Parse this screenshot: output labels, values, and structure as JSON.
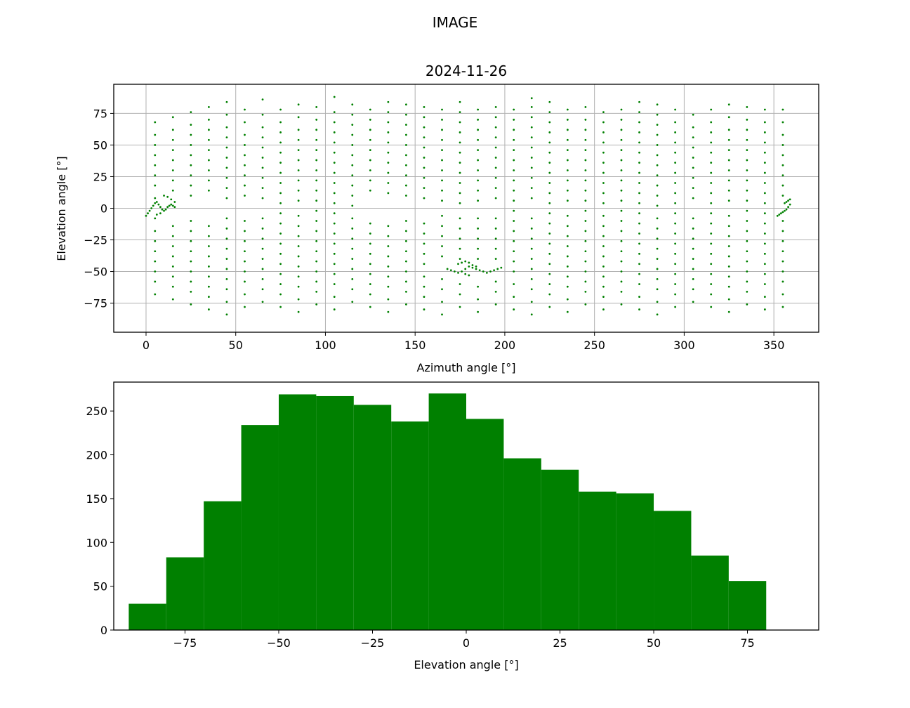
{
  "figure": {
    "suptitle": "IMAGE",
    "color": "#008000"
  },
  "chart_data": [
    {
      "type": "scatter",
      "title": "2024-11-26",
      "xlabel": "Azimuth angle [°]",
      "ylabel": "Elevation angle [°]",
      "xlim": [
        -18,
        375
      ],
      "ylim": [
        -98,
        98
      ],
      "xticks": [
        0,
        50,
        100,
        150,
        200,
        250,
        300,
        350
      ],
      "yticks": [
        -75,
        -50,
        -25,
        0,
        25,
        50,
        75
      ],
      "grid": true,
      "marker_color": "#008000",
      "elevation_columns": [
        {
          "x": 5,
          "el": [
            -68,
            -58,
            -50,
            -42,
            -34,
            -26,
            -18,
            -8,
            8,
            18,
            26,
            34,
            42,
            50,
            58,
            68
          ]
        },
        {
          "x": 15,
          "el": [
            -72,
            -62,
            -54,
            -46,
            -38,
            -30,
            -22,
            -14,
            14,
            22,
            30,
            38,
            46,
            54,
            62,
            72
          ]
        },
        {
          "x": 25,
          "el": [
            -76,
            -66,
            -58,
            -50,
            -42,
            -34,
            -26,
            -18,
            -10,
            10,
            18,
            26,
            34,
            42,
            50,
            58,
            66,
            76
          ]
        },
        {
          "x": 35,
          "el": [
            -80,
            -70,
            -62,
            -54,
            -46,
            -38,
            -30,
            -22,
            -14,
            14,
            22,
            30,
            38,
            46,
            54,
            62,
            70,
            80
          ]
        },
        {
          "x": 45,
          "el": [
            -84,
            -74,
            -64,
            -56,
            -48,
            -40,
            -32,
            -24,
            -16,
            -8,
            8,
            16,
            24,
            32,
            40,
            48,
            56,
            64,
            74,
            84
          ]
        },
        {
          "x": 55,
          "el": [
            -78,
            -68,
            -58,
            -50,
            -42,
            -34,
            -26,
            -18,
            -10,
            10,
            18,
            26,
            34,
            42,
            50,
            58,
            68,
            78
          ]
        },
        {
          "x": 65,
          "el": [
            -74,
            -64,
            -56,
            -48,
            -40,
            -32,
            -24,
            -16,
            -8,
            8,
            16,
            24,
            32,
            40,
            48,
            56,
            64,
            74,
            86
          ]
        },
        {
          "x": 75,
          "el": [
            -78,
            -68,
            -60,
            -52,
            -44,
            -36,
            -28,
            -20,
            -12,
            -4,
            4,
            12,
            20,
            28,
            36,
            44,
            52,
            60,
            68,
            78
          ]
        },
        {
          "x": 85,
          "el": [
            -82,
            -72,
            -62,
            -54,
            -46,
            -38,
            -30,
            -22,
            -14,
            -6,
            6,
            14,
            22,
            30,
            38,
            46,
            54,
            62,
            72,
            82
          ]
        },
        {
          "x": 95,
          "el": [
            -76,
            -66,
            -58,
            -50,
            -42,
            -34,
            -26,
            -18,
            -10,
            -2,
            6,
            14,
            22,
            30,
            38,
            46,
            54,
            62,
            70,
            80
          ]
        },
        {
          "x": 105,
          "el": [
            -80,
            -70,
            -60,
            -52,
            -44,
            -36,
            -28,
            -20,
            -12,
            -4,
            4,
            12,
            20,
            28,
            36,
            44,
            52,
            60,
            68,
            76,
            88
          ]
        },
        {
          "x": 115,
          "el": [
            -74,
            -64,
            -56,
            -48,
            -40,
            -32,
            -24,
            -16,
            -8,
            2,
            10,
            18,
            26,
            34,
            42,
            50,
            58,
            66,
            74,
            82
          ]
        },
        {
          "x": 125,
          "el": [
            -78,
            -68,
            -60,
            -52,
            -44,
            -36,
            -28,
            -20,
            -12,
            14,
            22,
            30,
            38,
            46,
            54,
            62,
            70,
            78
          ]
        },
        {
          "x": 135,
          "el": [
            -82,
            -72,
            -62,
            -54,
            -46,
            -38,
            -30,
            -22,
            -14,
            12,
            20,
            28,
            36,
            44,
            52,
            60,
            68,
            76,
            84
          ]
        },
        {
          "x": 145,
          "el": [
            -76,
            -66,
            -58,
            -50,
            -42,
            -34,
            -26,
            -18,
            -10,
            10,
            18,
            26,
            34,
            42,
            50,
            58,
            66,
            74,
            82
          ]
        },
        {
          "x": 155,
          "el": [
            -80,
            -70,
            -62,
            -54,
            -44,
            -36,
            -28,
            -20,
            -12,
            8,
            16,
            24,
            32,
            40,
            48,
            56,
            64,
            72,
            80
          ]
        },
        {
          "x": 165,
          "el": [
            -84,
            -74,
            -64,
            -56,
            -38,
            -30,
            -22,
            -14,
            -6,
            6,
            14,
            22,
            30,
            38,
            46,
            54,
            62,
            70,
            78
          ]
        },
        {
          "x": 175,
          "el": [
            -78,
            -68,
            -60,
            -40,
            -32,
            -24,
            -16,
            -8,
            4,
            12,
            20,
            28,
            36,
            44,
            52,
            60,
            68,
            76,
            84
          ]
        },
        {
          "x": 185,
          "el": [
            -82,
            -72,
            -62,
            -40,
            -32,
            -24,
            -16,
            -8,
            6,
            14,
            22,
            30,
            38,
            46,
            54,
            62,
            70,
            78
          ]
        },
        {
          "x": 195,
          "el": [
            -76,
            -66,
            -58,
            -40,
            -32,
            -24,
            -16,
            -8,
            8,
            16,
            24,
            32,
            40,
            48,
            56,
            64,
            72,
            80
          ]
        },
        {
          "x": 205,
          "el": [
            -80,
            -70,
            -60,
            -50,
            -42,
            -34,
            -26,
            -18,
            -10,
            -2,
            6,
            14,
            22,
            30,
            38,
            46,
            54,
            62,
            70,
            78
          ]
        },
        {
          "x": 215,
          "el": [
            -84,
            -74,
            -64,
            -56,
            -48,
            -40,
            -32,
            -24,
            -16,
            -8,
            8,
            16,
            24,
            32,
            40,
            48,
            56,
            64,
            72,
            80,
            87
          ]
        },
        {
          "x": 225,
          "el": [
            -78,
            -68,
            -60,
            -52,
            -44,
            -36,
            -28,
            -20,
            -12,
            -4,
            4,
            12,
            20,
            28,
            36,
            44,
            52,
            60,
            68,
            76,
            84
          ]
        },
        {
          "x": 235,
          "el": [
            -82,
            -72,
            -62,
            -54,
            -46,
            -38,
            -30,
            -22,
            -14,
            -6,
            6,
            14,
            22,
            30,
            38,
            46,
            54,
            62,
            70,
            78
          ]
        },
        {
          "x": 245,
          "el": [
            -76,
            -66,
            -58,
            -50,
            -42,
            -34,
            -26,
            -18,
            -10,
            -2,
            6,
            14,
            22,
            30,
            38,
            46,
            54,
            62,
            70,
            80
          ]
        },
        {
          "x": 255,
          "el": [
            -80,
            -70,
            -62,
            -54,
            -46,
            -38,
            -30,
            -22,
            -14,
            -6,
            4,
            12,
            20,
            28,
            36,
            44,
            52,
            60,
            68,
            76
          ]
        },
        {
          "x": 265,
          "el": [
            -76,
            -66,
            -58,
            -50,
            -42,
            -34,
            -26,
            -18,
            -10,
            -2,
            6,
            14,
            22,
            30,
            38,
            46,
            54,
            62,
            70,
            78
          ]
        },
        {
          "x": 275,
          "el": [
            -80,
            -70,
            -60,
            -52,
            -44,
            -36,
            -28,
            -20,
            -12,
            -4,
            4,
            12,
            20,
            28,
            36,
            44,
            52,
            60,
            68,
            76,
            84
          ]
        },
        {
          "x": 285,
          "el": [
            -84,
            -74,
            -64,
            -56,
            -48,
            -40,
            -32,
            -24,
            -16,
            -8,
            2,
            10,
            18,
            26,
            34,
            42,
            50,
            58,
            66,
            74,
            82
          ]
        },
        {
          "x": 295,
          "el": [
            -78,
            -68,
            -60,
            -52,
            -44,
            -36,
            -28,
            -20,
            -12,
            -4,
            4,
            12,
            20,
            28,
            36,
            44,
            52,
            60,
            68,
            78
          ]
        },
        {
          "x": 305,
          "el": [
            -74,
            -64,
            -56,
            -48,
            -40,
            -32,
            -24,
            -16,
            -8,
            8,
            16,
            24,
            32,
            40,
            48,
            56,
            64,
            74
          ]
        },
        {
          "x": 315,
          "el": [
            -78,
            -68,
            -60,
            -52,
            -44,
            -36,
            -28,
            -20,
            -12,
            -4,
            4,
            12,
            20,
            28,
            36,
            44,
            52,
            60,
            68,
            78
          ]
        },
        {
          "x": 325,
          "el": [
            -82,
            -72,
            -62,
            -54,
            -46,
            -38,
            -30,
            -22,
            -14,
            -6,
            6,
            14,
            22,
            30,
            38,
            46,
            54,
            62,
            72,
            82
          ]
        },
        {
          "x": 335,
          "el": [
            -76,
            -66,
            -58,
            -50,
            -42,
            -34,
            -26,
            -18,
            -10,
            -2,
            6,
            14,
            22,
            30,
            38,
            46,
            54,
            62,
            70,
            80
          ]
        },
        {
          "x": 345,
          "el": [
            -80,
            -70,
            -60,
            -52,
            -44,
            -36,
            -28,
            -20,
            -12,
            -4,
            4,
            12,
            20,
            28,
            36,
            44,
            52,
            60,
            68,
            78
          ]
        },
        {
          "x": 355,
          "el": [
            -78,
            -68,
            -58,
            -50,
            -42,
            -34,
            -26,
            -18,
            -10,
            10,
            18,
            26,
            34,
            42,
            50,
            58,
            68,
            78
          ]
        }
      ],
      "clusters": [
        {
          "x": [
            0,
            1,
            2,
            3,
            4,
            5,
            6,
            7,
            8,
            9,
            10,
            11,
            12,
            13,
            14,
            15,
            16,
            10,
            12,
            14,
            16,
            6,
            8
          ],
          "y": [
            -6,
            -4,
            -2,
            0,
            2,
            4,
            5,
            3,
            1,
            -1,
            -2,
            -1,
            1,
            2,
            3,
            2,
            1,
            10,
            9,
            7,
            5,
            -5,
            -4
          ]
        },
        {
          "x": [
            168,
            170,
            172,
            174,
            176,
            178,
            180,
            182,
            184,
            186,
            188,
            190,
            192,
            194,
            196,
            198,
            174,
            176,
            178,
            180,
            182,
            184,
            178,
            180
          ],
          "y": [
            -48,
            -49,
            -50,
            -51,
            -50,
            -48,
            -46,
            -47,
            -48,
            -49,
            -50,
            -51,
            -50,
            -49,
            -48,
            -47,
            -44,
            -43,
            -42,
            -43,
            -45,
            -46,
            -52,
            -53
          ]
        },
        {
          "x": [
            352,
            353,
            354,
            355,
            356,
            357,
            358,
            359,
            356,
            357,
            358,
            359
          ],
          "y": [
            -6,
            -5,
            -4,
            -3,
            -2,
            -1,
            1,
            3,
            4,
            5,
            6,
            7
          ]
        }
      ]
    },
    {
      "type": "bar",
      "title": "",
      "xlabel": "Elevation angle [°]",
      "ylabel": "",
      "xlim": [
        -94,
        94
      ],
      "ylim": [
        0,
        283
      ],
      "xticks": [
        -75,
        -50,
        -25,
        0,
        25,
        50,
        75
      ],
      "yticks": [
        0,
        50,
        100,
        150,
        200,
        250
      ],
      "grid": false,
      "bin_edges": [
        -90,
        -80,
        -70,
        -60,
        -50,
        -40,
        -30,
        -20,
        -10,
        0,
        10,
        20,
        30,
        40,
        50,
        60,
        70,
        80
      ],
      "values": [
        30,
        83,
        147,
        234,
        269,
        267,
        257,
        238,
        270,
        241,
        196,
        183,
        158,
        156,
        136,
        85,
        56
      ],
      "bar_color": "#008000"
    }
  ]
}
